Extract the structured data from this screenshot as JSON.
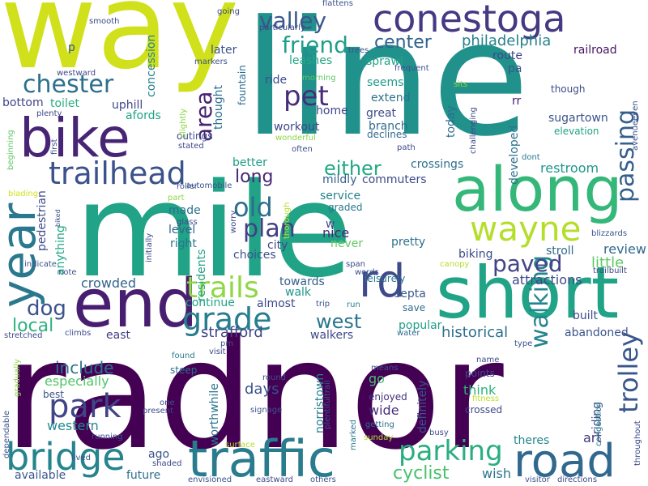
{
  "words": [
    {
      "text": "radnor",
      "color": "#440154"
    },
    {
      "text": "line",
      "color": "#21918c"
    },
    {
      "text": "mile",
      "color": "#20a386"
    },
    {
      "text": "way",
      "color": "#d0e11c"
    },
    {
      "text": "short",
      "color": "#20a386"
    },
    {
      "text": "conestoga",
      "color": "#443983"
    },
    {
      "text": "bike",
      "color": "#482475"
    },
    {
      "text": "along",
      "color": "#35b779"
    },
    {
      "text": "end",
      "color": "#481f70"
    },
    {
      "text": "rd",
      "color": "#3e4a89"
    },
    {
      "text": "year",
      "color": "#2a788e"
    },
    {
      "text": "traffic",
      "color": "#287c8e"
    },
    {
      "text": "road",
      "color": "#31688e"
    },
    {
      "text": "bridge",
      "color": "#25848e"
    },
    {
      "text": "wayne",
      "color": "#b5de2b"
    },
    {
      "text": "trailhead",
      "color": "#3b528b"
    },
    {
      "text": "park",
      "color": "#414487"
    },
    {
      "text": "passing",
      "color": "#355f8d"
    },
    {
      "text": "grade",
      "color": "#287d8e"
    },
    {
      "text": "trails",
      "color": "#8fd744"
    },
    {
      "text": "parking",
      "color": "#29af7f"
    },
    {
      "text": "walking",
      "color": "#25858e"
    },
    {
      "text": "trolley",
      "color": "#39568c"
    },
    {
      "text": "chester",
      "color": "#2d708e"
    },
    {
      "text": "pet",
      "color": "#472d7b"
    },
    {
      "text": "paved",
      "color": "#414487"
    },
    {
      "text": "valley",
      "color": "#38588c"
    },
    {
      "text": "friend",
      "color": "#1f9e89"
    },
    {
      "text": "old",
      "color": "#2e6e8e"
    },
    {
      "text": "plan",
      "color": "#433e85"
    },
    {
      "text": "dog",
      "color": "#3b528b"
    },
    {
      "text": "west",
      "color": "#2a768e"
    },
    {
      "text": "either",
      "color": "#22a884"
    },
    {
      "text": "area",
      "color": "#482173"
    },
    {
      "text": "center",
      "color": "#33638d"
    },
    {
      "text": "philadelphia",
      "color": "#26828e"
    },
    {
      "text": "cyclist",
      "color": "#4ac16d"
    },
    {
      "text": "include",
      "color": "#2c728e"
    },
    {
      "text": "long",
      "color": "#482878"
    },
    {
      "text": "local",
      "color": "#2db27d"
    },
    {
      "text": "days",
      "color": "#3b528b"
    },
    {
      "text": "strafford",
      "color": "#3f4788"
    },
    {
      "text": "especially",
      "color": "#52c569"
    },
    {
      "text": "western",
      "color": "#23898e"
    },
    {
      "text": "review",
      "color": "#31688e"
    },
    {
      "text": "little",
      "color": "#5ec962"
    },
    {
      "text": "attractions",
      "color": "#3e4989"
    },
    {
      "text": "historical",
      "color": "#2e6f8e"
    },
    {
      "text": "crowded",
      "color": "#33638d"
    },
    {
      "text": "restroom",
      "color": "#1f988b"
    },
    {
      "text": "continue",
      "color": "#20a486"
    },
    {
      "text": "towards",
      "color": "#355f8d"
    },
    {
      "text": "walk",
      "color": "#1f968b"
    },
    {
      "text": "almost",
      "color": "#3e4989"
    },
    {
      "text": "east",
      "color": "#433e85"
    },
    {
      "text": "septa",
      "color": "#38588c"
    },
    {
      "text": "popular",
      "color": "#1f9f88"
    },
    {
      "text": "walkers",
      "color": "#3f4889"
    },
    {
      "text": "abandoned",
      "color": "#3b528b"
    },
    {
      "text": "built",
      "color": "#3e4c8a"
    },
    {
      "text": "think",
      "color": "#2db27d"
    },
    {
      "text": "riding",
      "color": "#3b528b"
    },
    {
      "text": "art",
      "color": "#46337f"
    },
    {
      "text": "wish",
      "color": "#2a778e"
    },
    {
      "text": "theres",
      "color": "#25858e"
    },
    {
      "text": "available",
      "color": "#39568c"
    },
    {
      "text": "future",
      "color": "#2d708e"
    },
    {
      "text": "ago",
      "color": "#3b528b"
    },
    {
      "text": "worthwhile",
      "color": "#2c728e"
    },
    {
      "text": "norristown",
      "color": "#26828e"
    },
    {
      "text": "definitely",
      "color": "#3b528b"
    },
    {
      "text": "wide",
      "color": "#472c7a"
    },
    {
      "text": "enjoyed",
      "color": "#46307e"
    },
    {
      "text": "go",
      "color": "#44bf70"
    },
    {
      "text": "nice",
      "color": "#482979"
    },
    {
      "text": "pretty",
      "color": "#2d708e"
    },
    {
      "text": "service",
      "color": "#26818e"
    },
    {
      "text": "mildly",
      "color": "#355f8d"
    },
    {
      "text": "commuters",
      "color": "#3e4a89"
    },
    {
      "text": "crossings",
      "color": "#2c718e"
    },
    {
      "text": "developed",
      "color": "#2c738e"
    },
    {
      "text": "stroll",
      "color": "#2f6b8e"
    },
    {
      "text": "biking",
      "color": "#3e4c8a"
    },
    {
      "text": "workout",
      "color": "#3f4788"
    },
    {
      "text": "ride",
      "color": "#3e4c8a"
    },
    {
      "text": "branch",
      "color": "#2e6d8e"
    },
    {
      "text": "great",
      "color": "#3d4d8a"
    },
    {
      "text": "extend",
      "color": "#2c738e"
    },
    {
      "text": "seems",
      "color": "#1f9a8a"
    },
    {
      "text": "today",
      "color": "#2e6e8e"
    },
    {
      "text": "sprawl",
      "color": "#20a386"
    },
    {
      "text": "leashes",
      "color": "#22a884"
    },
    {
      "text": "pa",
      "color": "#39568c"
    },
    {
      "text": "route",
      "color": "#3f4788"
    },
    {
      "text": "railroad",
      "color": "#471365"
    },
    {
      "text": "rr",
      "color": "#481d6f"
    },
    {
      "text": "sugartown",
      "color": "#3b528b"
    },
    {
      "text": "elevation",
      "color": "#20a386"
    },
    {
      "text": "though",
      "color": "#3e4c8a"
    },
    {
      "text": "uphill",
      "color": "#3f4889"
    },
    {
      "text": "afords",
      "color": "#20a386"
    },
    {
      "text": "toilet",
      "color": "#29af7f"
    },
    {
      "text": "bottom",
      "color": "#414487"
    },
    {
      "text": "concession",
      "color": "#26828e"
    },
    {
      "text": "later",
      "color": "#3b528b"
    },
    {
      "text": "thought",
      "color": "#2c728e"
    },
    {
      "text": "better",
      "color": "#1f9e89"
    },
    {
      "text": "made",
      "color": "#2d708e"
    },
    {
      "text": "level",
      "color": "#33638d"
    },
    {
      "text": "right",
      "color": "#2a788e"
    },
    {
      "text": "choices",
      "color": "#3b528b"
    },
    {
      "text": "city",
      "color": "#3e4989"
    },
    {
      "text": "anything",
      "color": "#22a884"
    },
    {
      "text": "pedestrian",
      "color": "#3e4c8a"
    },
    {
      "text": "residents",
      "color": "#20a386"
    },
    {
      "text": "fountain",
      "color": "#2d708e"
    },
    {
      "text": "home",
      "color": "#3e4989"
    },
    {
      "text": "declines",
      "color": "#31688e"
    },
    {
      "text": "never",
      "color": "#5ec962"
    },
    {
      "text": "graded",
      "color": "#2a788e"
    },
    {
      "text": "thorough",
      "color": "#b5de2b"
    },
    {
      "text": "outings",
      "color": "#3e4c8a"
    },
    {
      "text": "leisurely",
      "color": "#2c738e"
    },
    {
      "text": "trip",
      "color": "#3b528b"
    },
    {
      "text": "run",
      "color": "#25848e"
    },
    {
      "text": "save",
      "color": "#2e6e8e"
    },
    {
      "text": "water",
      "color": "#31688e"
    },
    {
      "text": "climbs",
      "color": "#3e4c8a"
    },
    {
      "text": "steep",
      "color": "#2e6d8e"
    },
    {
      "text": "found",
      "color": "#2a788e"
    },
    {
      "text": "best",
      "color": "#3b528b"
    },
    {
      "text": "round",
      "color": "#3e4989"
    },
    {
      "text": "signage",
      "color": "#3b528b"
    },
    {
      "text": "fitness",
      "color": "#bddf26"
    },
    {
      "text": "crossed",
      "color": "#3e4989"
    },
    {
      "text": "points",
      "color": "#3e4989"
    },
    {
      "text": "means",
      "color": "#3b528b"
    },
    {
      "text": "name",
      "color": "#3f4788"
    },
    {
      "text": "busy",
      "color": "#3e4989"
    },
    {
      "text": "sunday",
      "color": "#b5de2b"
    },
    {
      "text": "getting",
      "color": "#2e6e8e"
    },
    {
      "text": "marked",
      "color": "#2a788e"
    },
    {
      "text": "congestion",
      "color": "#2a788e"
    },
    {
      "text": "throughout",
      "color": "#3e4989"
    },
    {
      "text": "visitor",
      "color": "#3b528b"
    },
    {
      "text": "directions",
      "color": "#3e4989"
    },
    {
      "text": "others",
      "color": "#3b528b"
    },
    {
      "text": "eastward",
      "color": "#3e4989"
    },
    {
      "text": "envisioned",
      "color": "#3b528b"
    },
    {
      "text": "shaded",
      "color": "#3e4989"
    },
    {
      "text": "lived",
      "color": "#3b528b"
    },
    {
      "text": "running",
      "color": "#3b528b"
    },
    {
      "text": "dependable",
      "color": "#3b528b"
    },
    {
      "text": "gradually",
      "color": "#8fd744"
    },
    {
      "text": "stretched",
      "color": "#3e4989"
    },
    {
      "text": "note",
      "color": "#3b528b"
    },
    {
      "text": "indicate",
      "color": "#3b528b"
    },
    {
      "text": "biked",
      "color": "#3b528b"
    },
    {
      "text": "blading",
      "color": "#d0e11c"
    },
    {
      "text": "beginning",
      "color": "#5ec962"
    },
    {
      "text": "first",
      "color": "#3b528b"
    },
    {
      "text": "plenty",
      "color": "#3e4989"
    },
    {
      "text": "westward",
      "color": "#3e4989"
    },
    {
      "text": "p",
      "color": "#3b528b"
    },
    {
      "text": "smooth",
      "color": "#3e4989"
    },
    {
      "text": "markers",
      "color": "#3b528b"
    },
    {
      "text": "going",
      "color": "#3e4989"
    },
    {
      "text": "particularly",
      "color": "#3e4989"
    },
    {
      "text": "flattens",
      "color": "#3b528b"
    },
    {
      "text": "trees",
      "color": "#3b528b"
    },
    {
      "text": "frequent",
      "color": "#3b528b"
    },
    {
      "text": "morning",
      "color": "#5ec962"
    },
    {
      "text": "slightly",
      "color": "#8fd744"
    },
    {
      "text": "wonderful",
      "color": "#8fd744"
    },
    {
      "text": "stated",
      "color": "#3e4989"
    },
    {
      "text": "often",
      "color": "#3b528b"
    },
    {
      "text": "path",
      "color": "#3e4989"
    },
    {
      "text": "challenging",
      "color": "#3e4989"
    },
    {
      "text": "sits",
      "color": "#8fd744"
    },
    {
      "text": "avenueeven",
      "color": "#3b528b"
    },
    {
      "text": "dont",
      "color": "#2a788e"
    },
    {
      "text": "roller",
      "color": "#3b528b"
    },
    {
      "text": "part",
      "color": "#8fd744"
    },
    {
      "text": "glass",
      "color": "#3e4989"
    },
    {
      "text": "automobile",
      "color": "#3b528b"
    },
    {
      "text": "worry",
      "color": "#3e4989"
    },
    {
      "text": "initially",
      "color": "#3e4989"
    },
    {
      "text": "span",
      "color": "#3e4989"
    },
    {
      "text": "words",
      "color": "#3b528b"
    },
    {
      "text": "canopy",
      "color": "#b5de2b"
    },
    {
      "text": "trailbuilt",
      "color": "#3e4989"
    },
    {
      "text": "blizzards",
      "color": "#3b528b"
    },
    {
      "text": "w",
      "color": "#3e4989"
    },
    {
      "text": "pm",
      "color": "#3b528b"
    },
    {
      "text": "visit",
      "color": "#3e4989"
    },
    {
      "text": "one",
      "color": "#3b528b"
    },
    {
      "text": "present",
      "color": "#3e4989"
    },
    {
      "text": "surface",
      "color": "#b5de2b"
    },
    {
      "text": "type",
      "color": "#3b528b"
    },
    {
      "text": "plentifultrail",
      "color": "#3b528b"
    }
  ]
}
